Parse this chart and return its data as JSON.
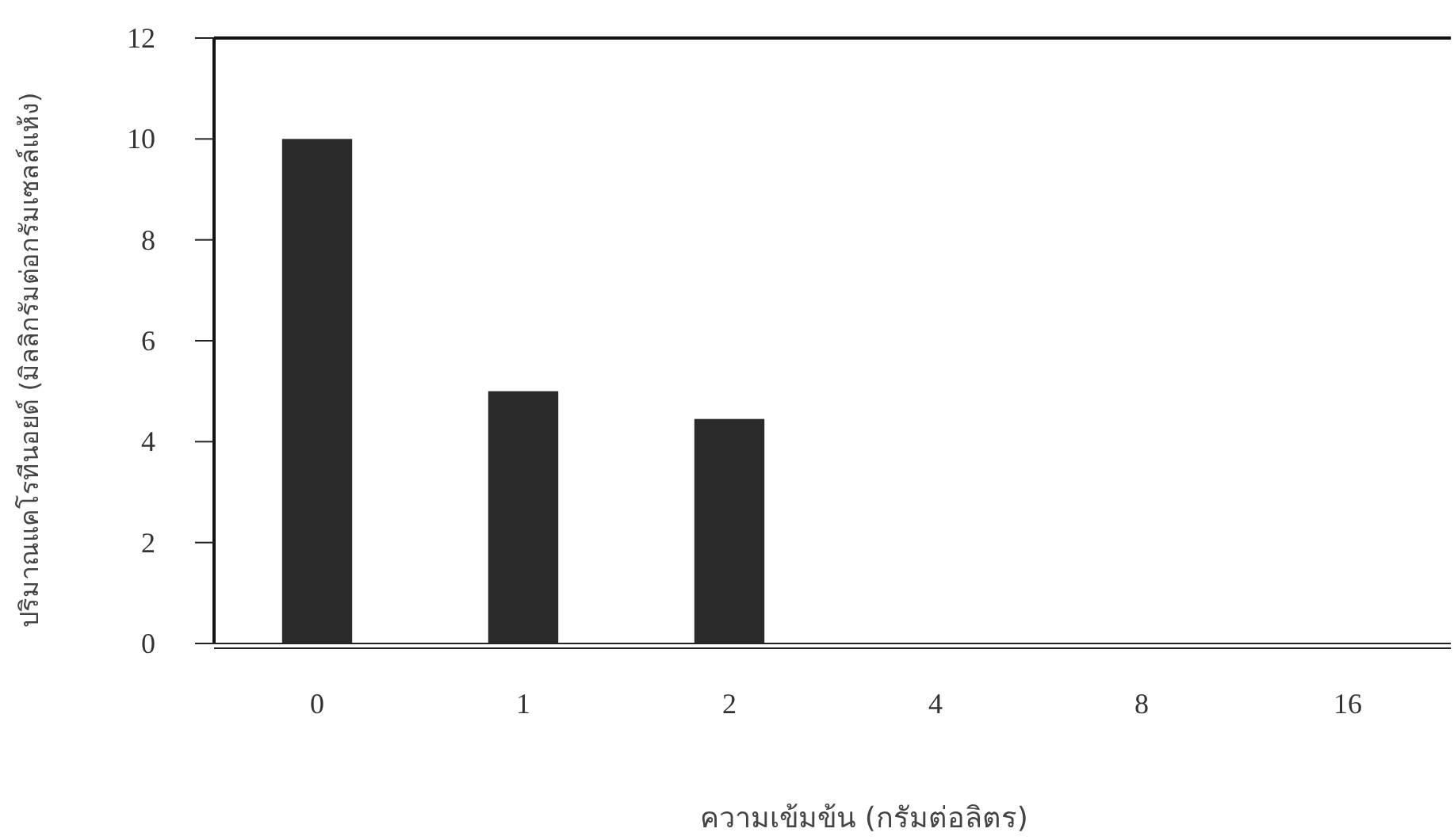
{
  "chart_data": {
    "type": "bar",
    "xlabel": "ความเข้มข้น (กรัมต่อลิตร)",
    "ylabel": "ปริมาณแคโรทีนอยด์ (มิลลิกรัมต่อกรัมเซลล์แห้ง)",
    "categories": [
      "0",
      "1",
      "2",
      "4",
      "8",
      "16"
    ],
    "values": [
      10,
      5,
      4.45,
      0,
      0,
      0
    ],
    "color": "#2b2b2b",
    "ylim": [
      0,
      12
    ],
    "yticks": [
      0,
      2,
      4,
      6,
      8,
      10,
      12
    ]
  }
}
